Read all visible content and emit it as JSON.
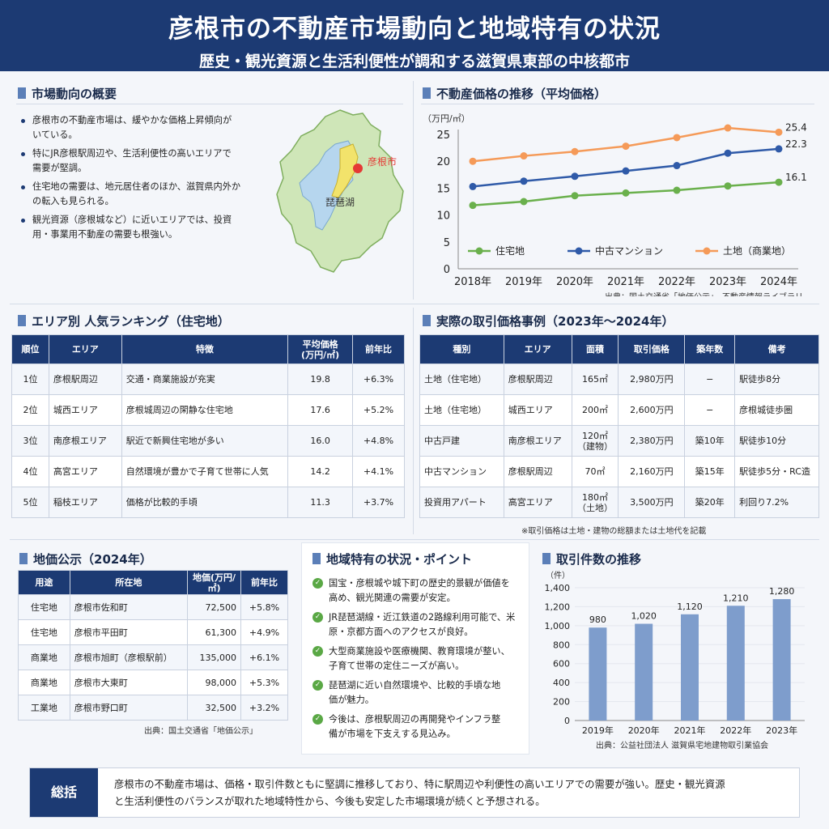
{
  "header": {
    "title": "彦根市の不動産市場動向と地域特有の状況",
    "subtitle": "歴史・観光資源と生活利便性が調和する滋賀県東部の中核都市"
  },
  "overview": {
    "title": "市場動向の概要",
    "bullets": [
      "彦根市の不動産市場は、緩やかな価格上昇傾向が",
      "いている。",
      "特にJR彦根駅周辺や、生活利便性の高いエリアで",
      "需要が堅調。",
      "住宅地の需要は、地元居住者のほか、滋賀県内外か",
      "の転入も見られる。",
      "観光資源（彦根城など）に近いエリアでは、投資",
      "用・事業用不動産の需要も根強い。"
    ],
    "map": {
      "city_label": "彦根市",
      "lake_label": "琵琶湖",
      "land_color": "#cfe6b8",
      "lake_color": "#b6d6ee",
      "city_color": "#f2e36b",
      "marker_color": "#e53935"
    }
  },
  "price_trend": {
    "title": "不動産価格の推移（平均価格）",
    "source": "出典：国土交通省「地価公示」、不動産情報ライブラリ"
  },
  "ranking": {
    "title": "エリア別 人気ランキング（住宅地）",
    "headers": [
      "順位",
      "エリア",
      "特徴",
      "平均価格",
      "(万円/㎡)",
      "前年比"
    ],
    "rows": [
      {
        "rank": "1位",
        "area": "彦根駅周辺",
        "feature": "交通・商業施設が充実",
        "price": "19.8",
        "yoy": "+6.3%"
      },
      {
        "rank": "2位",
        "area": "城西エリア",
        "feature": "彦根城周辺の閑静な住宅地",
        "price": "17.6",
        "yoy": "+5.2%"
      },
      {
        "rank": "3位",
        "area": "南彦根エリア",
        "feature": "駅近で新興住宅地が多い",
        "price": "16.0",
        "yoy": "+4.8%"
      },
      {
        "rank": "4位",
        "area": "高宮エリア",
        "feature": "自然環境が豊かで子育て世帯に人気",
        "price": "14.2",
        "yoy": "+4.1%"
      },
      {
        "rank": "5位",
        "area": "稲枝エリア",
        "feature": "価格が比較的手頃",
        "price": "11.3",
        "yoy": "+3.7%"
      }
    ]
  },
  "transactions": {
    "title": "実際の取引価格事例（2023年〜2024年）",
    "headers": [
      "種別",
      "エリア",
      "面積",
      "取引価格",
      "築年数",
      "備考"
    ],
    "rows": [
      {
        "type": "土地（住宅地）",
        "area": "彦根駅周辺",
        "size": "165㎡",
        "size2": "",
        "price": "2,980万円",
        "age": "−",
        "note": "駅徒歩8分"
      },
      {
        "type": "土地（住宅地）",
        "area": "城西エリア",
        "size": "200㎡",
        "size2": "",
        "price": "2,600万円",
        "age": "−",
        "note": "彦根城徒歩圏"
      },
      {
        "type": "中古戸建",
        "area": "南彦根エリア",
        "size": "120㎡",
        "size2": "（建物）",
        "price": "2,380万円",
        "age": "築10年",
        "note": "駅徒歩10分"
      },
      {
        "type": "中古マンション",
        "area": "彦根駅周辺",
        "size": "70㎡",
        "size2": "",
        "price": "2,160万円",
        "age": "築15年",
        "note": "駅徒歩5分・RC造"
      },
      {
        "type": "投資用アパート",
        "area": "高宮エリア",
        "size": "180㎡",
        "size2": "（土地）",
        "price": "3,500万円",
        "age": "築20年",
        "note": "利回り7.2%"
      }
    ],
    "footnote": "※取引価格は土地・建物の総額または土地代を記載"
  },
  "land_price": {
    "title": "地価公示（2024年）",
    "headers": [
      "用途",
      "所在地",
      "地価(万円/㎡)",
      "前年比"
    ],
    "rows": [
      {
        "use": "住宅地",
        "location": "彦根市佐和町",
        "price": "72,500",
        "yoy": "+5.8%"
      },
      {
        "use": "住宅地",
        "location": "彦根市平田町",
        "price": "61,300",
        "yoy": "+4.9%"
      },
      {
        "use": "商業地",
        "location": "彦根市旭町（彦根駅前）",
        "price": "135,000",
        "yoy": "+6.1%"
      },
      {
        "use": "商業地",
        "location": "彦根市大東町",
        "price": "98,000",
        "yoy": "+5.3%"
      },
      {
        "use": "工業地",
        "location": "彦根市野口町",
        "price": "32,500",
        "yoy": "+3.2%"
      }
    ],
    "source": "出典：国土交通省「地価公示」"
  },
  "regional": {
    "title": "地域特有の状況・ポイント",
    "points": [
      "国宝・彦根城や城下町の歴史的景観が価値を",
      "高め、観光関連の需要が安定。",
      "JR琵琶湖線・近江鉄道の2路線利用可能で、米",
      "原・京都方面へのアクセスが良好。",
      "大型商業施設や医療機関、教育環境が整い、",
      "子育て世帯の定住ニーズが高い。",
      "琵琶湖に近い自然環境や、比較的手頃な地",
      "価が魅力。",
      "今後は、彦根駅周辺の再開発やインフラ整",
      "備が市場を下支えする見込み。"
    ]
  },
  "transactions_count": {
    "title": "取引件数の推移",
    "source": "出典：公益社団法人 滋賀県宅地建物取引業協会"
  },
  "summary": {
    "label": "総括",
    "line1": "彦根市の不動産市場は、価格・取引件数ともに堅調に推移しており、特に駅周辺や利便性の高いエリアでの需要が強い。歴史・観光資源",
    "line2": "と生活利便性のバランスが取れた地域特性から、今後も安定した市場環境が続くと予想される。"
  },
  "chart_data": [
    {
      "type": "line",
      "title": "不動産価格の推移（平均価格）",
      "ylabel": "（万円/㎡）",
      "categories": [
        "2018年",
        "2019年",
        "2020年",
        "2021年",
        "2022年",
        "2023年",
        "2024年"
      ],
      "ylim": [
        0,
        25
      ],
      "yticks": [
        "0",
        "5",
        "10",
        "15",
        "20",
        "25"
      ],
      "grid": false,
      "legend": "bottom",
      "series": [
        {
          "name": "住宅地",
          "color": "#6ab04c",
          "values": [
            11.8,
            12.5,
            13.6,
            14.1,
            14.6,
            15.4,
            16.1
          ],
          "end_label": "16.1"
        },
        {
          "name": "中古マンション",
          "color": "#2f5aa8",
          "values": [
            15.3,
            16.3,
            17.2,
            18.2,
            19.2,
            21.5,
            22.3
          ],
          "end_label": "22.3"
        },
        {
          "name": "土地（商業地）",
          "color": "#f59a58",
          "values": [
            20.0,
            21.0,
            21.8,
            22.8,
            24.4,
            26.2,
            25.4
          ],
          "end_label": "25.4"
        }
      ]
    },
    {
      "type": "bar",
      "title": "取引件数の推移",
      "ylabel": "（件）",
      "categories": [
        "2019年",
        "2020年",
        "2021年",
        "2022年",
        "2023年"
      ],
      "values": [
        980,
        1020,
        1120,
        1210,
        1280
      ],
      "labels": [
        "980",
        "1,020",
        "1,120",
        "1,210",
        "1,280"
      ],
      "ylim": [
        0,
        1400
      ],
      "yticks": [
        "0",
        "200",
        "400",
        "600",
        "800",
        "1,000",
        "1,200",
        "1,400"
      ],
      "grid": true,
      "bar_color": "#7e9dcc"
    }
  ]
}
